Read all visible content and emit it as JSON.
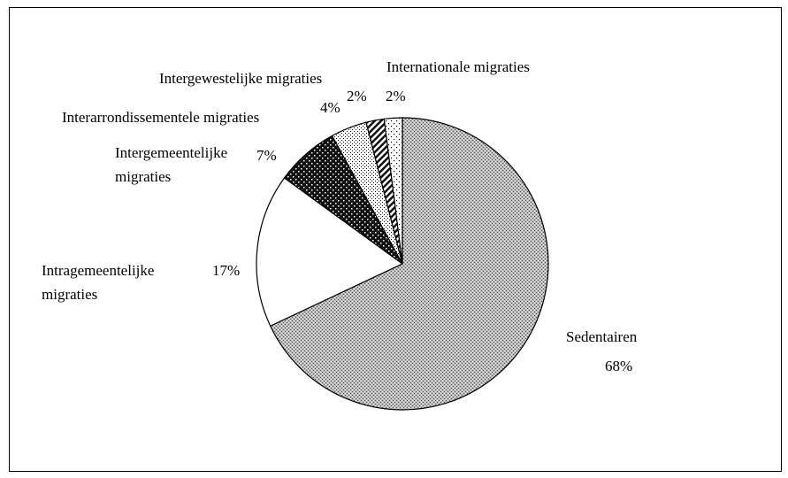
{
  "chart_data": {
    "type": "pie",
    "categories": [
      "Sedentairen",
      "Intragemeentelijke migraties",
      "Intergemeentelijke migraties",
      "Interarrondissementele migraties",
      "Intergewestelijke migraties",
      "Internationale migraties"
    ],
    "values": [
      68,
      17,
      7,
      4,
      2,
      2
    ],
    "value_labels": [
      "68%",
      "17%",
      "7%",
      "4%",
      "2%",
      "2%"
    ]
  }
}
